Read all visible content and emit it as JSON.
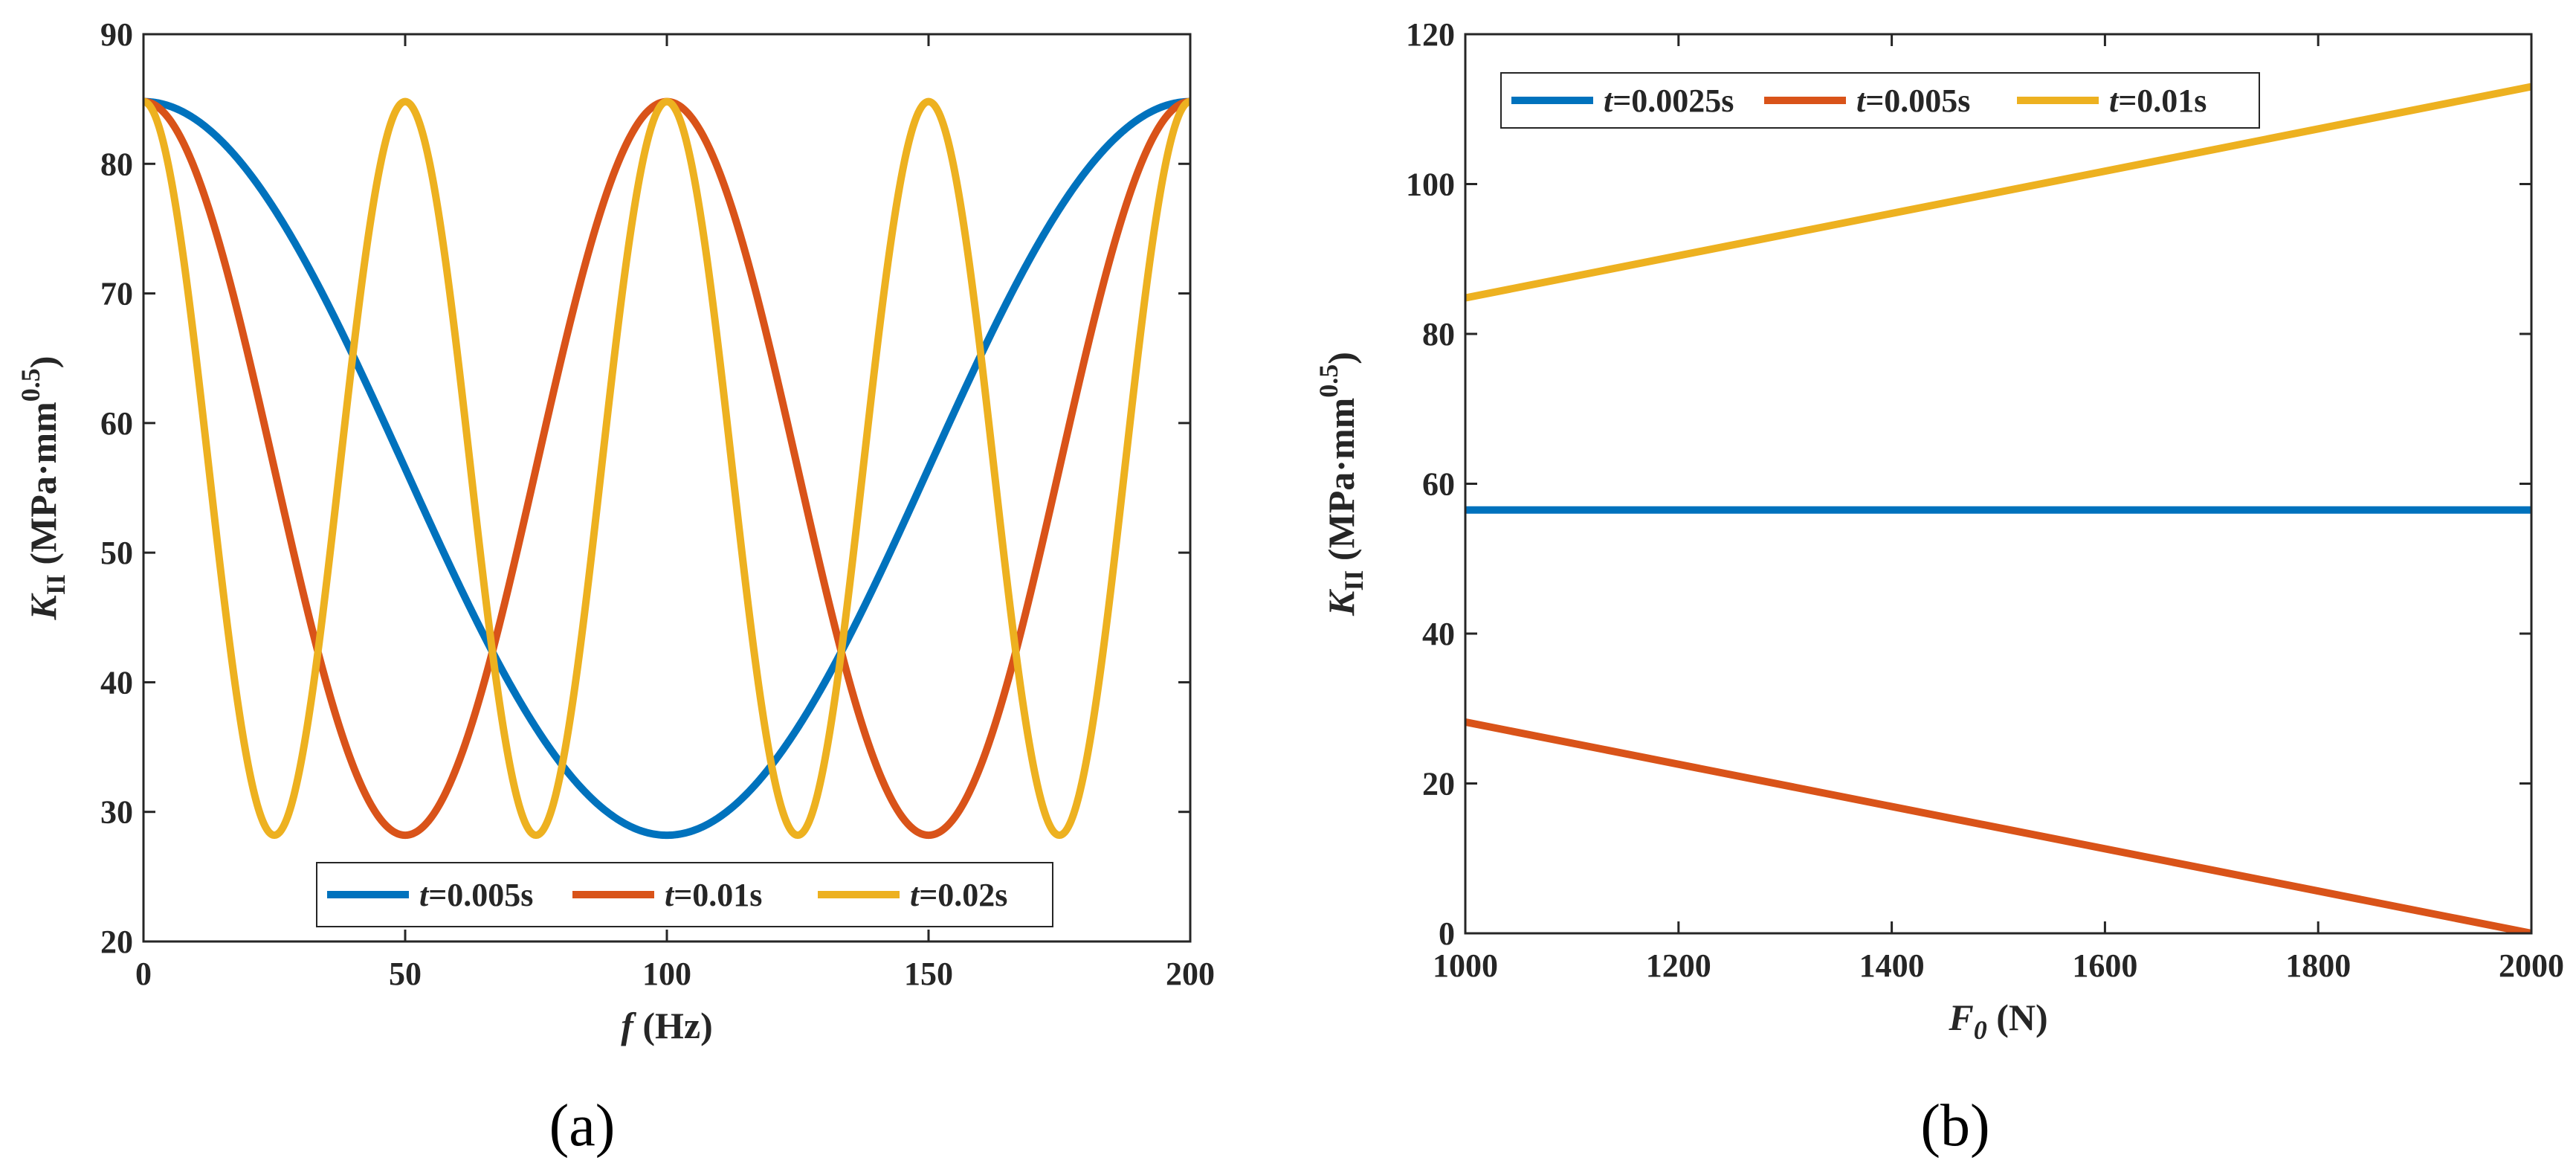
{
  "colors": {
    "blue": "#0072BD",
    "orange": "#D95319",
    "yellow": "#EDB120"
  },
  "chart_data": [
    {
      "type": "line",
      "panel": "a",
      "caption": "(a)",
      "xlabel": {
        "var": "f",
        "units": "(Hz)"
      },
      "ylabel": {
        "var": "K",
        "sub": "II",
        "units": "(MPa·mm",
        "sup": "0.5",
        "close": ")"
      },
      "xlim": [
        0,
        200
      ],
      "ylim": [
        20,
        90
      ],
      "xticks": [
        0,
        50,
        100,
        150,
        200
      ],
      "yticks": [
        20,
        30,
        40,
        50,
        60,
        70,
        80,
        90
      ],
      "legend_position": "bottom-center",
      "series": [
        {
          "name": "t=0.005s",
          "t_label": "t",
          "rest_label": "=0.005s",
          "color": "blue",
          "t": 0.005,
          "formula": "56.5 + 28.3*cos(2*pi*f*t)",
          "key_points": [
            [
              0,
              84.8
            ],
            [
              50,
              56.5
            ],
            [
              100,
              28.2
            ],
            [
              150,
              56.5
            ],
            [
              200,
              84.8
            ]
          ]
        },
        {
          "name": "t=0.01s",
          "t_label": "t",
          "rest_label": "=0.01s",
          "color": "orange",
          "t": 0.01,
          "formula": "56.5 + 28.3*cos(2*pi*f*t)",
          "key_points": [
            [
              0,
              84.8
            ],
            [
              50,
              28.2
            ],
            [
              100,
              84.8
            ],
            [
              150,
              28.2
            ],
            [
              200,
              84.8
            ]
          ]
        },
        {
          "name": "t=0.02s",
          "t_label": "t",
          "rest_label": "=0.02s",
          "color": "yellow",
          "t": 0.02,
          "formula": "56.5 + 28.3*cos(2*pi*f*t)",
          "key_points": [
            [
              0,
              84.8
            ],
            [
              25,
              28.2
            ],
            [
              50,
              84.8
            ],
            [
              75,
              28.2
            ],
            [
              100,
              84.8
            ],
            [
              125,
              28.2
            ],
            [
              150,
              84.8
            ],
            [
              175,
              28.2
            ],
            [
              200,
              84.8
            ]
          ]
        }
      ]
    },
    {
      "type": "line",
      "panel": "b",
      "caption": "(b)",
      "xlabel": {
        "var": "F",
        "sub": "0",
        "units": "(N)"
      },
      "ylabel": {
        "var": "K",
        "sub": "II",
        "units": "(MPa·mm",
        "sup": "0.5",
        "close": ")"
      },
      "xlim": [
        1000,
        2000
      ],
      "ylim": [
        0,
        120
      ],
      "xticks": [
        1000,
        1200,
        1400,
        1600,
        1800,
        2000
      ],
      "yticks": [
        0,
        20,
        40,
        60,
        80,
        100,
        120
      ],
      "legend_position": "top-left",
      "series": [
        {
          "name": "t=0.0025s",
          "t_label": "t",
          "rest_label": "=0.0025s",
          "color": "blue",
          "x": [
            1000,
            2000
          ],
          "y": [
            56.5,
            56.5
          ]
        },
        {
          "name": "t=0.005s",
          "t_label": "t",
          "rest_label": "=0.005s",
          "color": "orange",
          "x": [
            1000,
            2000
          ],
          "y": [
            28.2,
            0
          ]
        },
        {
          "name": "t=0.01s",
          "t_label": "t",
          "rest_label": "=0.01s",
          "color": "yellow",
          "x": [
            1000,
            2000
          ],
          "y": [
            84.8,
            113.0
          ]
        }
      ]
    }
  ]
}
